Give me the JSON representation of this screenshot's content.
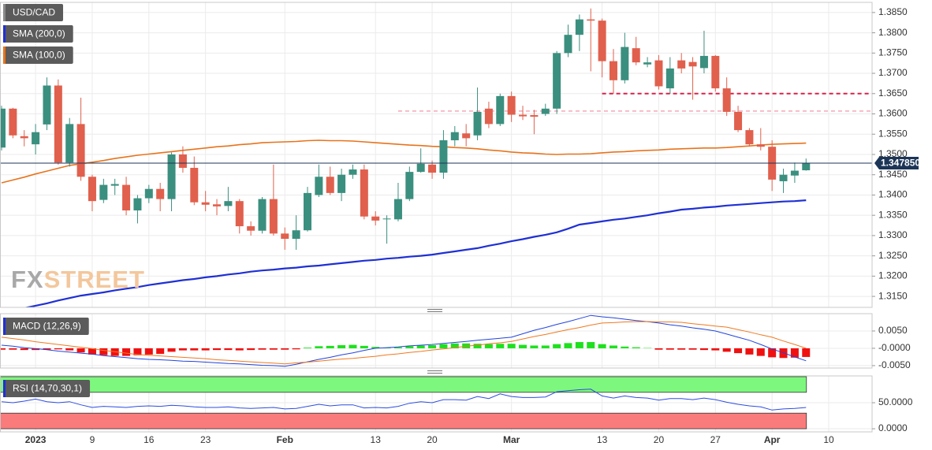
{
  "chart_data": [
    {
      "type": "candlestick",
      "title": "USD/CAD",
      "title_color": "#8a8a8a",
      "categories": [
        null,
        null,
        null,
        "2023",
        null,
        null,
        null,
        null,
        "9",
        null,
        null,
        null,
        null,
        "16",
        null,
        null,
        null,
        null,
        "23",
        null,
        null,
        null,
        null,
        null,
        null,
        "Feb",
        null,
        null,
        null,
        null,
        null,
        null,
        null,
        "13",
        null,
        null,
        null,
        null,
        "20",
        null,
        null,
        null,
        null,
        null,
        null,
        "Mar",
        null,
        null,
        null,
        null,
        null,
        null,
        null,
        "13",
        null,
        null,
        null,
        null,
        "20",
        null,
        null,
        null,
        null,
        "27",
        null,
        null,
        null,
        null,
        "Apr",
        null,
        null,
        null,
        null,
        "10"
      ],
      "open": [
        1.3517,
        1.3613,
        1.3545,
        1.3525,
        1.3574,
        1.367,
        1.348,
        1.3575,
        1.3445,
        1.3388,
        1.3423,
        1.3425,
        1.3362,
        1.3392,
        1.3415,
        1.339,
        1.35,
        1.3467,
        1.3382,
        1.3377,
        1.3373,
        1.3385,
        1.3323,
        1.3312,
        1.339,
        1.3305,
        1.3292,
        1.3313,
        1.34,
        1.3445,
        1.3405,
        1.345,
        1.3463,
        1.3347,
        1.334,
        1.334,
        1.339,
        1.3457,
        1.3475,
        1.3455,
        1.3535,
        1.3552,
        1.3547,
        1.3613,
        1.3575,
        1.3644,
        1.3598,
        1.3597,
        1.36,
        1.3613,
        1.375,
        1.3795,
        1.3833,
        1.383,
        1.373,
        1.3683,
        1.3762,
        1.3722,
        1.3732,
        1.3663,
        1.3732,
        1.3728,
        1.3713,
        1.3743,
        1.3663,
        1.3605,
        1.356,
        1.3525,
        1.3519,
        1.3434,
        1.3448,
        1.3461,
        null,
        null
      ],
      "high": [
        1.362,
        1.3615,
        1.356,
        1.3575,
        1.369,
        1.3685,
        1.359,
        1.364,
        1.345,
        1.344,
        1.344,
        1.3445,
        1.34,
        1.3425,
        1.343,
        1.3505,
        1.352,
        1.3495,
        1.341,
        1.339,
        1.342,
        1.339,
        1.3335,
        1.3395,
        1.3475,
        1.332,
        1.335,
        1.342,
        1.3475,
        1.347,
        1.3465,
        1.3475,
        1.3475,
        1.336,
        1.335,
        1.343,
        1.347,
        1.3515,
        1.3485,
        1.356,
        1.357,
        1.3575,
        1.3665,
        1.363,
        1.365,
        1.3655,
        1.362,
        1.361,
        1.3625,
        1.3755,
        1.382,
        1.3845,
        1.386,
        1.3835,
        1.376,
        1.38,
        1.379,
        1.374,
        1.3745,
        1.374,
        1.375,
        1.374,
        1.3805,
        1.3745,
        1.369,
        1.362,
        1.3565,
        1.3565,
        1.3535,
        1.3465,
        1.348,
        1.349,
        null,
        null
      ],
      "low": [
        1.351,
        1.354,
        1.352,
        1.35,
        1.356,
        1.3475,
        1.347,
        1.3435,
        1.336,
        1.338,
        1.34,
        1.335,
        1.333,
        1.338,
        1.336,
        1.336,
        1.3455,
        1.3375,
        1.336,
        1.335,
        1.336,
        1.3305,
        1.33,
        1.3305,
        1.33,
        1.3265,
        1.3265,
        1.331,
        1.3395,
        1.34,
        1.3385,
        1.344,
        1.334,
        1.3325,
        1.328,
        1.3335,
        1.3385,
        1.3455,
        1.344,
        1.344,
        1.352,
        1.352,
        1.3535,
        1.3565,
        1.357,
        1.358,
        1.3585,
        1.355,
        1.3595,
        1.36,
        1.374,
        1.3755,
        1.3705,
        1.369,
        1.365,
        1.3675,
        1.372,
        1.3715,
        1.366,
        1.365,
        1.37,
        1.3635,
        1.37,
        1.3655,
        1.3595,
        1.3555,
        1.352,
        1.351,
        1.341,
        1.3405,
        1.343,
        1.346,
        null,
        null
      ],
      "close": [
        1.3613,
        1.3547,
        1.354,
        1.3555,
        1.367,
        1.348,
        1.3575,
        1.3445,
        1.3385,
        1.3425,
        1.3427,
        1.3362,
        1.3392,
        1.3415,
        1.339,
        1.35,
        1.3467,
        1.3382,
        1.3376,
        1.3372,
        1.3385,
        1.3323,
        1.3312,
        1.339,
        1.3305,
        1.3292,
        1.3313,
        1.3405,
        1.3445,
        1.3405,
        1.345,
        1.3463,
        1.3347,
        1.3337,
        1.3342,
        1.339,
        1.3457,
        1.3477,
        1.3455,
        1.3535,
        1.3555,
        1.354,
        1.3605,
        1.3575,
        1.3644,
        1.3598,
        1.3594,
        1.3593,
        1.3613,
        1.375,
        1.3795,
        1.3833,
        1.383,
        1.373,
        1.3683,
        1.3765,
        1.3727,
        1.3727,
        1.3668,
        1.3712,
        1.3712,
        1.3717,
        1.3743,
        1.3663,
        1.3605,
        1.356,
        1.3525,
        1.3519,
        1.3438,
        1.345,
        1.346,
        1.34785,
        null,
        null
      ],
      "up_color": "#3b8f7f",
      "down_color": "#e0604d",
      "series": [
        {
          "name": "SMA (200,0)",
          "color": "#1f30d4",
          "values": [
            null,
            null,
            1.3121,
            1.3127,
            1.3133,
            1.314,
            1.3146,
            1.3152,
            1.3156,
            1.316,
            1.3165,
            1.3169,
            1.3173,
            1.3178,
            1.3182,
            1.3186,
            1.319,
            1.3193,
            1.3197,
            1.32,
            1.3204,
            1.3207,
            1.3211,
            1.3214,
            1.3216,
            1.3219,
            1.3221,
            1.3224,
            1.3226,
            1.3229,
            1.3232,
            1.3235,
            1.3238,
            1.324,
            1.3243,
            1.3245,
            1.3248,
            1.325,
            1.3253,
            1.3257,
            1.3261,
            1.3265,
            1.3269,
            1.3275,
            1.328,
            1.3286,
            1.3291,
            1.3297,
            1.3302,
            1.3308,
            1.3317,
            1.3327,
            1.3331,
            1.3335,
            1.3339,
            1.3342,
            1.3346,
            1.335,
            1.3355,
            1.3359,
            1.3364,
            1.3366,
            1.3369,
            1.3371,
            1.3374,
            1.3376,
            1.3378,
            1.338,
            1.3382,
            1.3384,
            1.3385,
            1.3387,
            null,
            null
          ]
        },
        {
          "name": "SMA (100,0)",
          "color": "#e8731c",
          "values": [
            1.343,
            1.3437,
            1.3444,
            1.3452,
            1.3459,
            1.3466,
            1.3473,
            1.3477,
            1.3481,
            1.3485,
            1.349,
            1.3494,
            1.3498,
            1.3501,
            1.3504,
            1.3507,
            1.351,
            1.3513,
            1.3516,
            1.3519,
            1.3521,
            1.3524,
            1.3526,
            1.3529,
            1.353,
            1.3531,
            1.3532,
            1.3534,
            1.3535,
            1.3534,
            1.3534,
            1.3533,
            1.3531,
            1.3529,
            1.3527,
            1.3525,
            1.3523,
            1.3522,
            1.352,
            1.3519,
            1.3517,
            1.3516,
            1.3514,
            1.3511,
            1.3509,
            1.3506,
            1.3504,
            1.3503,
            1.3501,
            1.35,
            1.3501,
            1.3501,
            1.3502,
            1.3504,
            1.3506,
            1.3507,
            1.3509,
            1.351,
            1.3511,
            1.3513,
            1.3514,
            1.3515,
            1.3516,
            1.3516,
            1.3517,
            1.3519,
            1.3521,
            1.3523,
            1.3525,
            1.3526,
            1.3527,
            1.3528,
            null,
            null
          ]
        }
      ],
      "hlines": [
        {
          "value": 1.365,
          "start": 53,
          "color": "#d9204a",
          "width": 2
        },
        {
          "value": 1.3607,
          "start": 35,
          "color": "#f08aa0",
          "width": 1.2
        }
      ],
      "last_price": {
        "value": 1.34785,
        "label": "1.347850",
        "color": "#1c3557"
      },
      "ylim": [
        1.3123,
        1.3875
      ],
      "yticks": [
        {
          "value": 1.315,
          "label": "1.3150"
        },
        {
          "value": 1.32,
          "label": "1.3200"
        },
        {
          "value": 1.325,
          "label": "1.3250"
        },
        {
          "value": 1.33,
          "label": "1.3300"
        },
        {
          "value": 1.335,
          "label": "1.3350"
        },
        {
          "value": 1.34,
          "label": "1.3400"
        },
        {
          "value": 1.345,
          "label": "1.3450"
        },
        {
          "value": 1.35,
          "label": "1.3500"
        },
        {
          "value": 1.355,
          "label": "1.3550"
        },
        {
          "value": 1.36,
          "label": "1.3600"
        },
        {
          "value": 1.365,
          "label": "1.3650"
        },
        {
          "value": 1.37,
          "label": "1.3700"
        },
        {
          "value": 1.375,
          "label": "1.3750"
        },
        {
          "value": 1.38,
          "label": "1.3800"
        },
        {
          "value": 1.385,
          "label": "1.3850"
        }
      ],
      "grid": true
    },
    {
      "type": "macd",
      "title": "MACD (12,26,9)",
      "title_color": "#1f30d4",
      "histogram": {
        "up_color": "#1ee01e",
        "down_color": "#f01010",
        "values": [
          -0.0004,
          -0.0004,
          -0.0005,
          -0.0005,
          -0.0004,
          -0.0003,
          -0.0006,
          -0.0012,
          -0.0018,
          -0.002,
          -0.0022,
          -0.0022,
          -0.002,
          -0.0018,
          -0.0016,
          -0.001,
          -0.0006,
          -0.0006,
          -0.0006,
          -0.0005,
          -0.0005,
          -0.0006,
          -0.0005,
          -0.0004,
          -0.0004,
          -0.0004,
          -0.0003,
          0.0002,
          0.0006,
          0.0007,
          0.0009,
          0.001,
          0.0007,
          0.0004,
          0.0002,
          0.0003,
          0.0006,
          0.0008,
          0.0009,
          0.0012,
          0.0014,
          0.0014,
          0.0013,
          0.0012,
          0.0013,
          0.0013,
          0.001,
          0.0008,
          0.0008,
          0.0012,
          0.0015,
          0.0018,
          0.0018,
          0.0012,
          0.0008,
          0.0005,
          0.0003,
          0.0001,
          -0.0004,
          -0.0004,
          -0.0004,
          -0.0004,
          -0.0005,
          -0.0006,
          -0.001,
          -0.0014,
          -0.0018,
          -0.0022,
          -0.0026,
          -0.0028,
          -0.0027,
          -0.0025,
          null,
          null
        ]
      },
      "lines": [
        {
          "color": "#2244dd",
          "values": [
            0.0009,
            0.0006,
            0.0002,
            -0.0001,
            -0.0004,
            -0.0008,
            -0.0011,
            -0.0014,
            -0.0017,
            -0.0021,
            -0.0024,
            -0.0027,
            -0.003,
            -0.0032,
            -0.0033,
            -0.0035,
            -0.0037,
            -0.0038,
            -0.004,
            -0.0042,
            -0.0044,
            -0.0045,
            -0.0047,
            -0.0049,
            -0.005,
            -0.0052,
            -0.0046,
            -0.0039,
            -0.0032,
            -0.0026,
            -0.0019,
            -0.0013,
            -0.0006,
            0.0,
            0.0002,
            0.0004,
            0.0007,
            0.0009,
            0.0011,
            0.0014,
            0.0017,
            0.002,
            0.0023,
            0.0026,
            0.0029,
            0.0032,
            0.0042,
            0.0052,
            0.006,
            0.0069,
            0.0077,
            0.0086,
            0.0095,
            0.0091,
            0.0088,
            0.0084,
            0.008,
            0.0077,
            0.0073,
            0.0068,
            0.0064,
            0.0059,
            0.0055,
            0.005,
            0.0041,
            0.0032,
            0.0023,
            0.0011,
            -0.0002,
            -0.0013,
            -0.0025,
            -0.0036,
            null,
            null
          ]
        },
        {
          "color": "#f07820",
          "values": [
            0.0032,
            0.0028,
            0.0024,
            0.0019,
            0.0015,
            0.0011,
            0.0007,
            0.0003,
            -0.0001,
            -0.0006,
            -0.001,
            -0.0014,
            -0.0018,
            -0.002,
            -0.0022,
            -0.0024,
            -0.0026,
            -0.0028,
            -0.003,
            -0.0033,
            -0.0035,
            -0.0037,
            -0.0039,
            -0.0041,
            -0.0043,
            -0.0045,
            -0.0042,
            -0.004,
            -0.0037,
            -0.0034,
            -0.0031,
            -0.0029,
            -0.0026,
            -0.0023,
            -0.0019,
            -0.0016,
            -0.0012,
            -0.0009,
            -0.0005,
            -0.0002,
            0.0002,
            0.0006,
            0.0009,
            0.0013,
            0.0016,
            0.002,
            0.0027,
            0.0034,
            0.004,
            0.0047,
            0.0054,
            0.006,
            0.0067,
            0.0073,
            0.0074,
            0.0076,
            0.0077,
            0.0077,
            0.0076,
            0.0076,
            0.0075,
            0.0071,
            0.0068,
            0.0064,
            0.0061,
            0.0054,
            0.0047,
            0.0039,
            0.0032,
            0.0021,
            0.0011,
            0.0,
            null,
            null
          ]
        }
      ],
      "ylim": [
        -0.0057,
        0.01
      ],
      "yticks": [
        {
          "value": -0.005,
          "label": "-0.0050"
        },
        {
          "value": 0,
          "label": "-0.0000"
        },
        {
          "value": 0.005,
          "label": "0.0050"
        }
      ],
      "grid": true
    },
    {
      "type": "rsi",
      "title": "RSI (14,70,30,1)",
      "title_color": "#1f30d4",
      "bands": [
        {
          "from": 70,
          "to": 100,
          "color": "#7ef77e"
        },
        {
          "from": 0,
          "to": 30,
          "color": "#fa7b7b"
        }
      ],
      "lines": [
        {
          "color": "#2c4ce0",
          "values": [
            52,
            50,
            53,
            57,
            52,
            50,
            52,
            46,
            41,
            43,
            42,
            41,
            43,
            44,
            43,
            45,
            44,
            42,
            41,
            41,
            42,
            40,
            39,
            40,
            41,
            38,
            39,
            43,
            47,
            44,
            46,
            46,
            40,
            41,
            40,
            43,
            49,
            52,
            50,
            56,
            56,
            55,
            62,
            58,
            67,
            62,
            60,
            60,
            61,
            71,
            73,
            75,
            76,
            63,
            59,
            63,
            60,
            59,
            55,
            58,
            58,
            56,
            59,
            56,
            51,
            47,
            44,
            42,
            36,
            38,
            39,
            41,
            null,
            null
          ]
        }
      ],
      "ylim": [
        -6,
        101.5
      ],
      "yticks": [
        {
          "value": 0,
          "label": "0.0000"
        },
        {
          "value": 50,
          "label": "50.0000"
        }
      ],
      "grid": true
    }
  ],
  "watermark": {
    "fx": "FX",
    "street": "STREET"
  }
}
